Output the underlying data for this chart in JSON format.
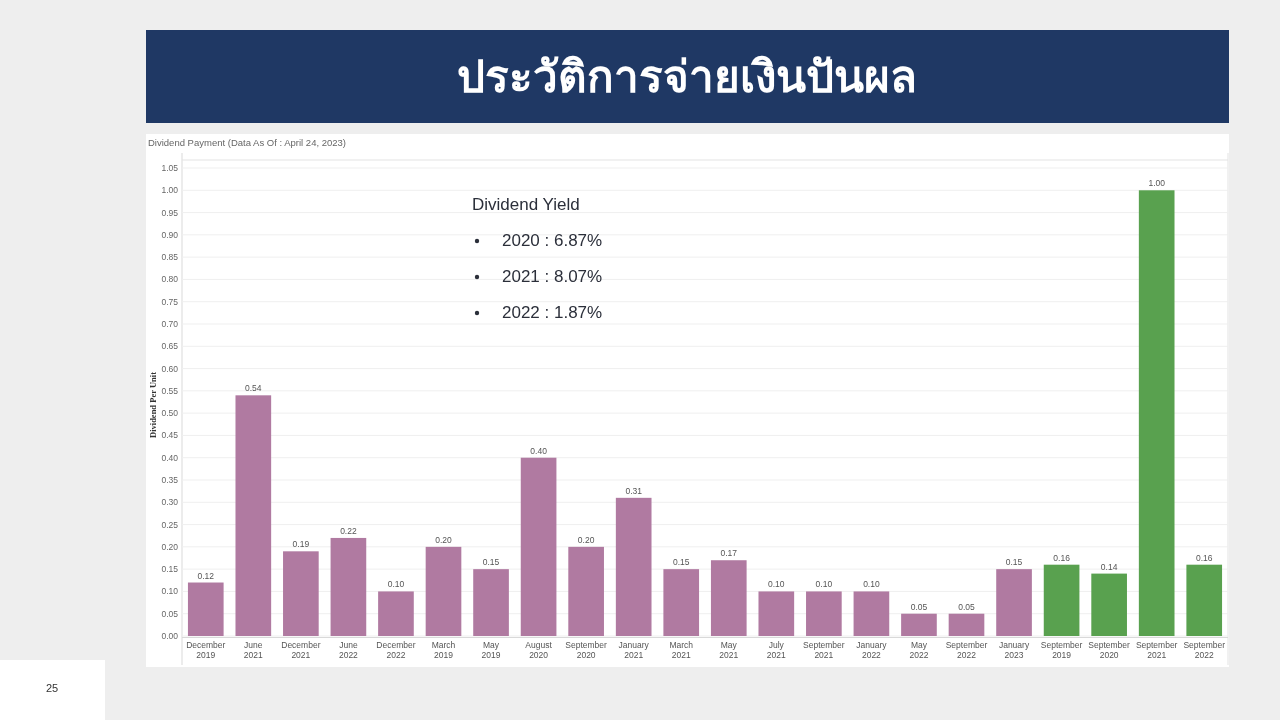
{
  "chart_data": {
    "type": "bar",
    "title": "ประวัติการจ่ายเงินปันผล",
    "subtitle": "Dividend Payment  (Data As Of : April 24, 2023)",
    "ylabel": "Dividend Per Unit",
    "categories": [
      "December 2019",
      "June 2021",
      "December 2021",
      "June 2022",
      "December 2022",
      "March 2019",
      "May 2019",
      "August 2020",
      "September 2020",
      "January 2021",
      "March 2021",
      "May 2021",
      "July 2021",
      "September 2021",
      "January 2022",
      "May 2022",
      "September 2022",
      "January 2023",
      "September 2019",
      "September 2020",
      "September 2021",
      "September 2022"
    ],
    "values": [
      0.12,
      0.54,
      0.19,
      0.22,
      0.1,
      0.2,
      0.15,
      0.4,
      0.2,
      0.31,
      0.15,
      0.17,
      0.1,
      0.1,
      0.1,
      0.05,
      0.05,
      0.15,
      0.16,
      0.14,
      1.0,
      0.16
    ],
    "value_labels": [
      "0.12",
      "0.54",
      "0.19",
      "0.22",
      "0.10",
      "0.20",
      "0.15",
      "0.40",
      "0.20",
      "0.31",
      "0.15",
      "0.17",
      "0.10",
      "0.10",
      "0.10",
      "0.05",
      "0.05",
      "0.15",
      "0.16",
      "0.14",
      "1.00",
      "0.16"
    ],
    "colors": [
      "#b07aa1",
      "#b07aa1",
      "#b07aa1",
      "#b07aa1",
      "#b07aa1",
      "#b07aa1",
      "#b07aa1",
      "#b07aa1",
      "#b07aa1",
      "#b07aa1",
      "#b07aa1",
      "#b07aa1",
      "#b07aa1",
      "#b07aa1",
      "#b07aa1",
      "#b07aa1",
      "#b07aa1",
      "#b07aa1",
      "#59a14f",
      "#59a14f",
      "#59a14f",
      "#59a14f"
    ],
    "grid": "y",
    "ylim": [
      0,
      1.05
    ],
    "yticks": [
      {
        "value": 0,
        "label": "0.00"
      },
      0.05,
      {
        "value": 0.1,
        "label": "0.10"
      },
      0.15,
      {
        "value": 0.2,
        "label": "0.20"
      },
      0.25,
      {
        "value": 0.3,
        "label": "0.30"
      },
      0.35,
      {
        "value": 0.4,
        "label": "0.40"
      },
      0.45,
      {
        "value": 0.5,
        "label": "0.50"
      },
      0.55,
      {
        "value": 0.6,
        "label": "0.60"
      },
      0.65,
      {
        "value": 0.7,
        "label": "0.70"
      },
      0.75,
      {
        "value": 0.8,
        "label": "0.80"
      },
      0.85,
      {
        "value": 0.9,
        "label": "0.90"
      },
      0.95,
      {
        "value": 1,
        "label": "1.00"
      },
      1.05
    ],
    "annotations": [
      "Dividend Yield",
      "2020 : 6.87%",
      "2021 : 8.07%",
      "2022 : 1.87%",
      "25"
    ]
  }
}
